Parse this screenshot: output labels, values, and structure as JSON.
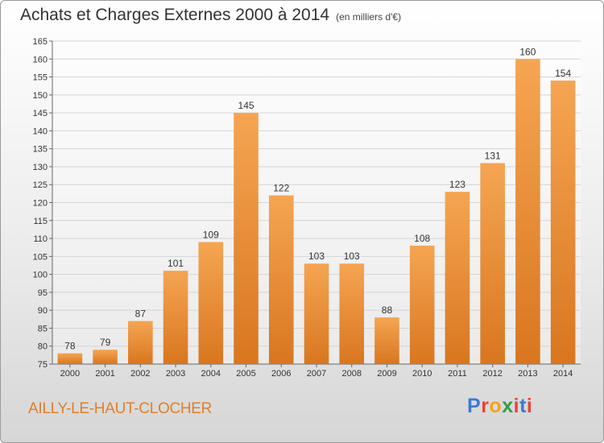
{
  "header": {
    "title": "Achats et Charges Externes 2000 à 2014",
    "subtitle": "(en milliers d'€)"
  },
  "footer": {
    "location": "AILLY-LE-HAUT-CLOCHER",
    "logo_text": "Proxiti",
    "logo_colors": [
      "#3a7bd5",
      "#e8433a",
      "#f2a31b",
      "#2e9e4a",
      "#e8433a",
      "#3a7bd5",
      "#e8433a"
    ]
  },
  "colors": {
    "bar_light": "#f5a552",
    "bar_dark": "#d9761f",
    "grid": "#d4d4d4",
    "location_text": "#e07f2a"
  },
  "chart_data": {
    "type": "bar",
    "title": "Achats et Charges Externes 2000 à 2014",
    "subtitle": "(en milliers d'€)",
    "categories": [
      "2000",
      "2001",
      "2002",
      "2003",
      "2004",
      "2005",
      "2006",
      "2007",
      "2008",
      "2009",
      "2010",
      "2011",
      "2012",
      "2013",
      "2014"
    ],
    "values": [
      78,
      79,
      87,
      101,
      109,
      145,
      122,
      103,
      103,
      88,
      108,
      123,
      131,
      160,
      154
    ],
    "ylim": [
      75,
      165
    ],
    "yticks": [
      75,
      80,
      85,
      90,
      95,
      100,
      105,
      110,
      115,
      120,
      125,
      130,
      135,
      140,
      145,
      150,
      155,
      160,
      165
    ],
    "xlabel": "",
    "ylabel": "",
    "grid": true,
    "data_labels": true
  }
}
